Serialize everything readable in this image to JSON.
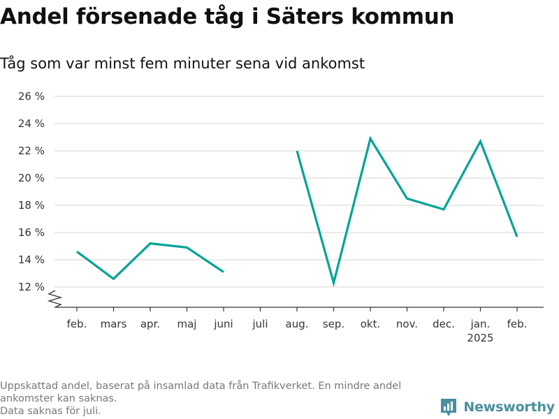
{
  "title": "Andel försenade tåg i Säters kommun",
  "subtitle": "Tåg som var minst fem minuter sena vid ankomst",
  "chart_data": {
    "type": "line",
    "categories": [
      "feb.",
      "mars",
      "apr.",
      "maj",
      "juni",
      "juli",
      "aug.",
      "sep.",
      "okt.",
      "nov.",
      "dec.",
      "jan.",
      "feb."
    ],
    "year_label": "2025",
    "series": [
      {
        "values": [
          14.6,
          12.6,
          15.2,
          14.9,
          13.1,
          null,
          22.0,
          12.3,
          22.9,
          18.5,
          17.7,
          22.7,
          15.7
        ]
      }
    ],
    "yticks": [
      12,
      14,
      16,
      18,
      20,
      22,
      24,
      26
    ],
    "ytick_labels": [
      "12 %",
      "14 %",
      "16 %",
      "18 %",
      "20 %",
      "22 %",
      "24 %",
      "26 %"
    ],
    "ylim": [
      12,
      26
    ],
    "y_axis_break": true,
    "grid": true,
    "color": "#00a396"
  },
  "footnote": {
    "line1": "Uppskattad andel, baserat på insamlad data från Trafikverket. En mindre andel",
    "line2": "ankomster kan saknas.",
    "line3": "Data saknas för juli."
  },
  "brand": {
    "name": "Newsworthy",
    "icon": "newsworthy-logo-icon",
    "color": "#4b8f9c"
  }
}
